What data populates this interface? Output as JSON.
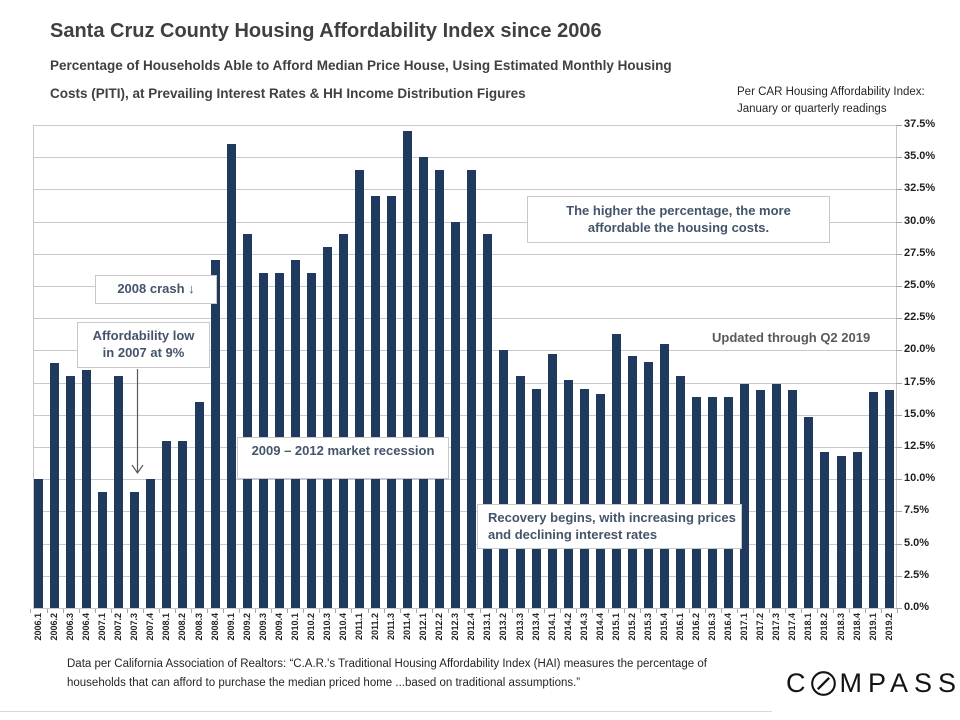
{
  "header": {
    "title": "Santa Cruz County Housing Affordability Index since 2006",
    "subtitle_line1": "Percentage of Households Able to Afford Median Price House, Using Estimated Monthly Housing",
    "subtitle_line2": "Costs (PITI), at Prevailing Interest Rates & HH Income Distribution Figures",
    "note_line1": "Per CAR Housing Affordability Index:",
    "note_line2": "January or quarterly readings"
  },
  "chart_data": {
    "type": "bar",
    "title": "Santa Cruz County Housing Affordability Index since 2006",
    "categories": [
      "2006.1",
      "2006.2",
      "2006.3",
      "2006.4",
      "2007.1",
      "2007.2",
      "2007.3",
      "2007.4",
      "2008.1",
      "2008.2",
      "2008.3",
      "2008.4",
      "2009.1",
      "2009.2",
      "2009.3",
      "2009.4",
      "2010.1",
      "2010.2",
      "2010.3",
      "2010.4",
      "2011.1",
      "2011.2",
      "2011.3",
      "2011.4",
      "2012.1",
      "2012.2",
      "2012.3",
      "2012.4",
      "2013.1",
      "2013.2",
      "2013.3",
      "2013.4",
      "2014.1",
      "2014.2",
      "2014.3",
      "2014.4",
      "2015.1",
      "2015.2",
      "2015.3",
      "2015.4",
      "2016.1",
      "2016.2",
      "2016.3",
      "2016.4",
      "2017.1",
      "2017.2",
      "2017.3",
      "2017.4",
      "2018.1",
      "2018.2",
      "2018.3",
      "2018.4",
      "2019.1",
      "2019.2"
    ],
    "values": [
      10,
      19,
      18,
      18.5,
      9,
      18,
      9,
      10,
      13,
      13,
      16,
      27,
      36,
      29,
      26,
      26,
      27,
      26,
      28,
      29,
      34,
      32,
      32,
      37,
      35,
      34,
      30,
      34,
      29,
      20,
      18,
      17,
      19.7,
      17.7,
      17,
      16.6,
      21.3,
      19.6,
      19.1,
      20.5,
      18,
      16.4,
      16.4,
      16.4,
      17.4,
      16.9,
      17.4,
      16.9,
      14.8,
      12.1,
      11.8,
      12.1,
      16.8,
      16.9
    ],
    "xlabel": "",
    "ylabel": "",
    "ylim": [
      0,
      37.5
    ],
    "ytick_step": 2.5,
    "ytick_labels": [
      "0.0%",
      "2.5%",
      "5.0%",
      "7.5%",
      "10.0%",
      "12.5%",
      "15.0%",
      "17.5%",
      "20.0%",
      "22.5%",
      "25.0%",
      "27.5%",
      "30.0%",
      "32.5%",
      "35.0%",
      "37.5%"
    ],
    "grid": true,
    "legend": "none",
    "bar_color": "#1f3a5e",
    "annotations": {
      "crash": {
        "text": "2008 crash ↓"
      },
      "low": {
        "line1": "Affordability low",
        "line2": "in 2007 at 9%"
      },
      "recession": {
        "text": "2009 – 2012 market recession"
      },
      "higher": {
        "line1": "The higher the percentage, the more",
        "line2": "affordable the housing costs."
      },
      "recovery": {
        "line1": "Recovery begins, with increasing prices",
        "line2": "and declining interest rates"
      },
      "updated": {
        "text": "Updated through Q2 2019"
      }
    }
  },
  "footer": {
    "line1": "Data per California Association of Realtors: “C.A.R.'s Traditional Housing Affordability Index (HAI) measures the percentage of",
    "line2": "households that can afford to purchase the median priced home ...based on traditional assumptions.”",
    "brand_prefix": "C",
    "brand_suffix": "MPASS"
  },
  "colors": {
    "bar": "#1f3a5e",
    "annotation_text": "#44546a",
    "title_text": "#404040",
    "grid": "#c9c9c9"
  }
}
